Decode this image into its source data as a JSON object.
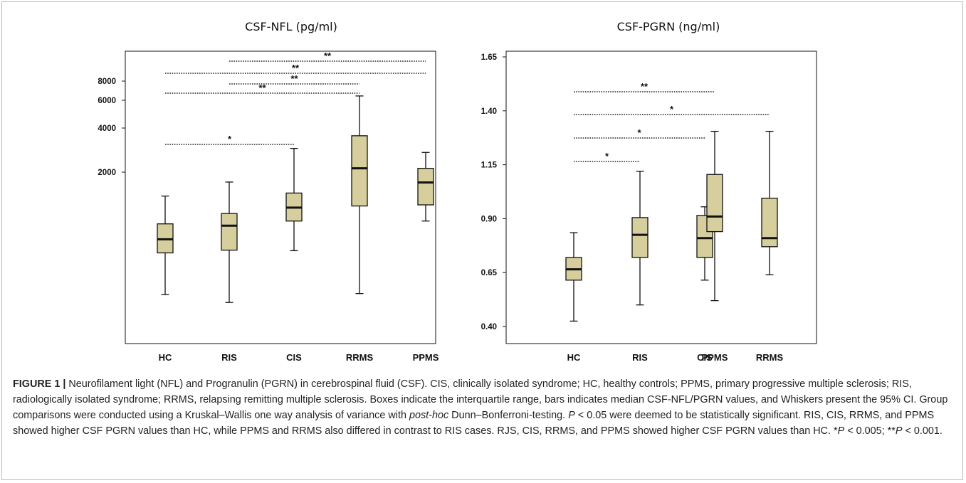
{
  "chart_data": [
    {
      "type": "box",
      "title": "CSF-NFL (pg/ml)",
      "xlabel": "",
      "ylabel": "",
      "y_scale": "log",
      "yticks": [
        2000,
        4000,
        6000,
        8000
      ],
      "categories": [
        "HC",
        "RIS",
        "CIS",
        "RRMS",
        "PPMS"
      ],
      "box_color": "#d6cf9d",
      "boxes": [
        {
          "group": "HC",
          "whisker_low": 310,
          "q1": 585,
          "median": 720,
          "q3": 910,
          "whisker_high": 1390
        },
        {
          "group": "RIS",
          "whisker_low": 275,
          "q1": 610,
          "median": 885,
          "q3": 1065,
          "whisker_high": 1720
        },
        {
          "group": "CIS",
          "whisker_low": 605,
          "q1": 950,
          "median": 1165,
          "q3": 1455,
          "whisker_high": 2870
        },
        {
          "group": "RRMS",
          "whisker_low": 315,
          "q1": 1195,
          "median": 2120,
          "q3": 3480,
          "whisker_high": 6380
        },
        {
          "group": "PPMS",
          "whisker_low": 950,
          "q1": 1215,
          "median": 1710,
          "q3": 2120,
          "whisker_high": 2700
        }
      ],
      "comparisons": [
        {
          "from": "HC",
          "to": "CIS",
          "label": "*"
        },
        {
          "from": "HC",
          "to": "RRMS",
          "label": "**"
        },
        {
          "from": "RIS",
          "to": "RRMS",
          "label": "**"
        },
        {
          "from": "HC",
          "to": "PPMS",
          "label": "**"
        },
        {
          "from": "RIS",
          "to": "PPMS",
          "label": "**"
        }
      ]
    },
    {
      "type": "box",
      "title": "CSF-PGRN (ng/ml)",
      "xlabel": "",
      "ylabel": "",
      "ylim": [
        0.4,
        1.65
      ],
      "yticks": [
        "0.40",
        "0.65",
        "0.90",
        "1.15",
        "1.40",
        "1.65"
      ],
      "categories": [
        "HC",
        "RIS",
        "CIS",
        "RRMS",
        "PPMS"
      ],
      "box_color": "#d6cf9d",
      "boxes": [
        {
          "group": "HC",
          "whisker_low": 0.425,
          "q1": 0.615,
          "median": 0.665,
          "q3": 0.72,
          "whisker_high": 0.835
        },
        {
          "group": "RIS",
          "whisker_low": 0.5,
          "q1": 0.72,
          "median": 0.825,
          "q3": 0.905,
          "whisker_high": 1.12
        },
        {
          "group": "CIS",
          "whisker_low": 0.615,
          "q1": 0.72,
          "median": 0.81,
          "q3": 0.915,
          "whisker_high": 0.955
        },
        {
          "group": "RRMS",
          "whisker_low": 0.64,
          "q1": 0.77,
          "median": 0.81,
          "q3": 0.995,
          "whisker_high": 1.305
        },
        {
          "group": "PPMS",
          "whisker_low": 0.52,
          "q1": 0.84,
          "median": 0.91,
          "q3": 1.105,
          "whisker_high": 1.305
        }
      ],
      "comparisons": [
        {
          "from": "HC",
          "to": "RIS",
          "label": "*"
        },
        {
          "from": "HC",
          "to": "CIS",
          "label": "*"
        },
        {
          "from": "HC",
          "to": "RRMS",
          "label": "*"
        },
        {
          "from": "HC",
          "to": "PPMS",
          "label": "**"
        }
      ]
    }
  ],
  "caption": {
    "lead": "FIGURE 1 |",
    "part1": " Neurofilament light (NFL) and Progranulin (PGRN) in cerebrospinal fluid (CSF). CIS, clinically isolated syndrome; HC, healthy controls; PPMS, primary progressive multiple sclerosis; RIS, radiologically isolated syndrome; RRMS, relapsing remitting multiple sclerosis. Boxes indicate the interquartile range, bars indicates median CSF-NFL/PGRN values, and Whiskers present the 95% CI. Group comparisons were conducted using a Kruskal–Wallis one way analysis of variance with ",
    "posthoc": "post-hoc",
    "part2": " Dunn–Bonferroni-testing. ",
    "p_symbol": "P",
    "part3": " < 0.05 were deemed to be statistically significant. RIS, CIS, RRMS, and PPMS showed higher CSF PGRN values than HC, while PPMS and RRMS also differed in contrast to RIS cases. RJS, CIS, RRMS, and PPMS showed higher CSF PGRN values than HC. *",
    "p_symbol_2": "P",
    "part4": " < 0.005; **",
    "p_symbol_3": "P",
    "part5": " < 0.001."
  }
}
